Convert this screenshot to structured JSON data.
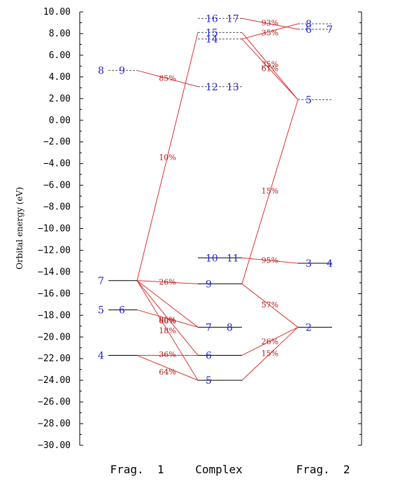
{
  "axis": {
    "title": "Orbital energy (eV)",
    "min": -30,
    "max": 10,
    "tick_labels": [
      "10.00",
      "8.00",
      "6.00",
      "4.00",
      "2.00",
      "0.00",
      "−2.00",
      "−4.00",
      "−6.00",
      "−8.00",
      "−10.00",
      "−12.00",
      "−14.00",
      "−16.00",
      "−18.00",
      "−20.00",
      "−22.00",
      "−24.00",
      "−26.00",
      "−28.00",
      "−30.00"
    ]
  },
  "columns": [
    "Frag.  1",
    "Complex",
    "Frag.  2"
  ],
  "colors": {
    "occupied": "#000000",
    "virtual": "#555555",
    "label": "#2222cc",
    "contribution": "#e03030",
    "contribution_text": "#b01818"
  },
  "levels": [
    {
      "col": 0,
      "e": 4.6,
      "occ": false,
      "label": "8",
      "label2": "9"
    },
    {
      "col": 0,
      "e": -14.8,
      "occ": true,
      "label": "7",
      "label2": ""
    },
    {
      "col": 0,
      "e": -17.5,
      "occ": true,
      "label": "5",
      "label2": "6"
    },
    {
      "col": 0,
      "e": -21.7,
      "occ": true,
      "label": "4",
      "label2": ""
    },
    {
      "col": 1,
      "e": 9.4,
      "occ": false,
      "label": "16",
      "label2": "17"
    },
    {
      "col": 1,
      "e": 8.1,
      "occ": false,
      "label": "15",
      "label2": ""
    },
    {
      "col": 1,
      "e": 7.5,
      "occ": false,
      "label": "14",
      "label2": ""
    },
    {
      "col": 1,
      "e": 3.1,
      "occ": false,
      "label": "12",
      "label2": "13"
    },
    {
      "col": 1,
      "e": -12.7,
      "occ": true,
      "label": "10",
      "label2": "11"
    },
    {
      "col": 1,
      "e": -15.1,
      "occ": true,
      "label": "9",
      "label2": ""
    },
    {
      "col": 1,
      "e": -19.1,
      "occ": true,
      "label": "7",
      "label2": "8"
    },
    {
      "col": 1,
      "e": -21.7,
      "occ": true,
      "label": "6",
      "label2": ""
    },
    {
      "col": 1,
      "e": -24.0,
      "occ": true,
      "label": "5",
      "label2": ""
    },
    {
      "col": 2,
      "e": 8.9,
      "occ": false,
      "label": "8",
      "label2": ""
    },
    {
      "col": 2,
      "e": 8.4,
      "occ": false,
      "label": "6",
      "label2": "7"
    },
    {
      "col": 2,
      "e": 1.9,
      "occ": false,
      "label": "5",
      "label2": ""
    },
    {
      "col": 2,
      "e": -13.2,
      "occ": true,
      "label": "3",
      "label2": "4"
    },
    {
      "col": 2,
      "e": -19.1,
      "occ": true,
      "label": "2",
      "label2": ""
    }
  ],
  "connections": [
    {
      "from": [
        0,
        4.6
      ],
      "to": [
        1,
        3.1
      ]
    },
    {
      "from": [
        0,
        -14.8
      ],
      "to": [
        1,
        8.1
      ]
    },
    {
      "from": [
        0,
        -14.8
      ],
      "to": [
        1,
        -15.1
      ]
    },
    {
      "from": [
        0,
        -14.8
      ],
      "to": [
        1,
        -19.1
      ]
    },
    {
      "from": [
        0,
        -14.8
      ],
      "to": [
        1,
        -21.7
      ]
    },
    {
      "from": [
        0,
        -14.8
      ],
      "to": [
        1,
        -24.0
      ]
    },
    {
      "from": [
        0,
        -17.5
      ],
      "to": [
        1,
        -19.1
      ]
    },
    {
      "from": [
        0,
        -21.7
      ],
      "to": [
        1,
        -21.7
      ]
    },
    {
      "from": [
        0,
        -21.7
      ],
      "to": [
        1,
        -24.0
      ]
    },
    {
      "from": [
        2,
        8.4
      ],
      "to": [
        1,
        9.4
      ]
    },
    {
      "from": [
        2,
        8.9
      ],
      "to": [
        1,
        7.5
      ]
    },
    {
      "from": [
        2,
        1.9
      ],
      "to": [
        1,
        8.1
      ]
    },
    {
      "from": [
        2,
        1.9
      ],
      "to": [
        1,
        7.5
      ]
    },
    {
      "from": [
        2,
        1.9
      ],
      "to": [
        1,
        -15.1
      ]
    },
    {
      "from": [
        2,
        -13.2
      ],
      "to": [
        1,
        -12.7
      ]
    },
    {
      "from": [
        2,
        -19.1
      ],
      "to": [
        1,
        -15.1
      ]
    },
    {
      "from": [
        2,
        -19.1
      ],
      "to": [
        1,
        -21.7
      ]
    },
    {
      "from": [
        2,
        -19.1
      ],
      "to": [
        1,
        -24.0
      ]
    }
  ],
  "percentages": [
    {
      "text": "85%",
      "col": 0.5,
      "e": 3.9
    },
    {
      "text": "10%",
      "col": 0.5,
      "e": -3.4
    },
    {
      "text": "26%",
      "col": 0.5,
      "e": -14.9
    },
    {
      "text": "90%",
      "col": 0.5,
      "e": -18.4
    },
    {
      "text": "66%",
      "col": 0.5,
      "e": -18.5
    },
    {
      "text": "18%",
      "col": 0.5,
      "e": -19.4
    },
    {
      "text": "36%",
      "col": 0.5,
      "e": -21.6
    },
    {
      "text": "64%",
      "col": 0.5,
      "e": -23.2
    },
    {
      "text": "93%",
      "col": 1.5,
      "e": 9.0
    },
    {
      "text": "35%",
      "col": 1.5,
      "e": 8.1
    },
    {
      "text": "35%",
      "col": 1.5,
      "e": 5.2
    },
    {
      "text": "61%",
      "col": 1.5,
      "e": 4.8
    },
    {
      "text": "15%",
      "col": 1.5,
      "e": -6.5
    },
    {
      "text": "95%",
      "col": 1.5,
      "e": -12.9
    },
    {
      "text": "57%",
      "col": 1.5,
      "e": -17.0
    },
    {
      "text": "26%",
      "col": 1.5,
      "e": -20.4
    },
    {
      "text": "15%",
      "col": 1.5,
      "e": -21.5
    }
  ]
}
